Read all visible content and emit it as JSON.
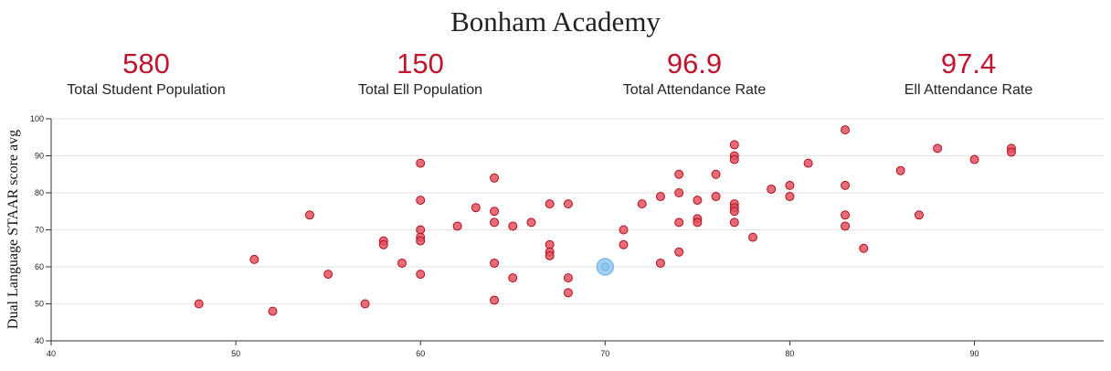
{
  "title": "Bonham Academy",
  "colors": {
    "accent": "#c0152f",
    "point_fill": "#e2525f",
    "point_stroke": "#b01020",
    "highlight_fill": "#93c8f0",
    "highlight_stroke": "#6aaee6"
  },
  "stats": [
    {
      "value": "580",
      "label": "Total Student Population"
    },
    {
      "value": "150",
      "label": "Total Ell Population"
    },
    {
      "value": "96.9",
      "label": "Total Attendance Rate"
    },
    {
      "value": "97.4",
      "label": "Ell Attendance Rate"
    }
  ],
  "chart_data": {
    "type": "scatter",
    "xlabel": "",
    "ylabel": "Dual Language STAAR score avg",
    "xlim": [
      40,
      97
    ],
    "ylim": [
      40,
      100
    ],
    "x_ticks": [
      40,
      50,
      60,
      70,
      80,
      90
    ],
    "y_ticks": [
      40,
      50,
      60,
      70,
      80,
      90,
      100
    ],
    "grid": "horizontal",
    "points": [
      {
        "x": 48,
        "y": 50
      },
      {
        "x": 51,
        "y": 62
      },
      {
        "x": 52,
        "y": 48
      },
      {
        "x": 54,
        "y": 74
      },
      {
        "x": 55,
        "y": 58
      },
      {
        "x": 57,
        "y": 50
      },
      {
        "x": 58,
        "y": 67
      },
      {
        "x": 58,
        "y": 66
      },
      {
        "x": 59,
        "y": 61
      },
      {
        "x": 60,
        "y": 88
      },
      {
        "x": 60,
        "y": 78
      },
      {
        "x": 60,
        "y": 70
      },
      {
        "x": 60,
        "y": 68
      },
      {
        "x": 60,
        "y": 67
      },
      {
        "x": 60,
        "y": 58
      },
      {
        "x": 62,
        "y": 71
      },
      {
        "x": 63,
        "y": 76
      },
      {
        "x": 64,
        "y": 84
      },
      {
        "x": 64,
        "y": 75
      },
      {
        "x": 64,
        "y": 72
      },
      {
        "x": 64,
        "y": 61
      },
      {
        "x": 64,
        "y": 51
      },
      {
        "x": 65,
        "y": 71
      },
      {
        "x": 65,
        "y": 57
      },
      {
        "x": 66,
        "y": 72
      },
      {
        "x": 67,
        "y": 77
      },
      {
        "x": 67,
        "y": 66
      },
      {
        "x": 67,
        "y": 64
      },
      {
        "x": 67,
        "y": 63
      },
      {
        "x": 68,
        "y": 77
      },
      {
        "x": 68,
        "y": 57
      },
      {
        "x": 68,
        "y": 53
      },
      {
        "x": 71,
        "y": 70
      },
      {
        "x": 71,
        "y": 66
      },
      {
        "x": 72,
        "y": 77
      },
      {
        "x": 73,
        "y": 79
      },
      {
        "x": 73,
        "y": 61
      },
      {
        "x": 74,
        "y": 85
      },
      {
        "x": 74,
        "y": 80
      },
      {
        "x": 74,
        "y": 72
      },
      {
        "x": 74,
        "y": 64
      },
      {
        "x": 75,
        "y": 78
      },
      {
        "x": 75,
        "y": 73
      },
      {
        "x": 75,
        "y": 72
      },
      {
        "x": 76,
        "y": 85
      },
      {
        "x": 76,
        "y": 79
      },
      {
        "x": 77,
        "y": 93
      },
      {
        "x": 77,
        "y": 90
      },
      {
        "x": 77,
        "y": 89
      },
      {
        "x": 77,
        "y": 77
      },
      {
        "x": 77,
        "y": 76
      },
      {
        "x": 77,
        "y": 75
      },
      {
        "x": 77,
        "y": 72
      },
      {
        "x": 78,
        "y": 68
      },
      {
        "x": 79,
        "y": 81
      },
      {
        "x": 80,
        "y": 82
      },
      {
        "x": 80,
        "y": 79
      },
      {
        "x": 81,
        "y": 88
      },
      {
        "x": 83,
        "y": 97
      },
      {
        "x": 83,
        "y": 82
      },
      {
        "x": 83,
        "y": 74
      },
      {
        "x": 83,
        "y": 71
      },
      {
        "x": 84,
        "y": 65
      },
      {
        "x": 86,
        "y": 86
      },
      {
        "x": 87,
        "y": 74
      },
      {
        "x": 88,
        "y": 92
      },
      {
        "x": 90,
        "y": 89
      },
      {
        "x": 92,
        "y": 92
      },
      {
        "x": 92,
        "y": 91
      }
    ],
    "highlight": {
      "x": 70,
      "y": 60
    }
  }
}
